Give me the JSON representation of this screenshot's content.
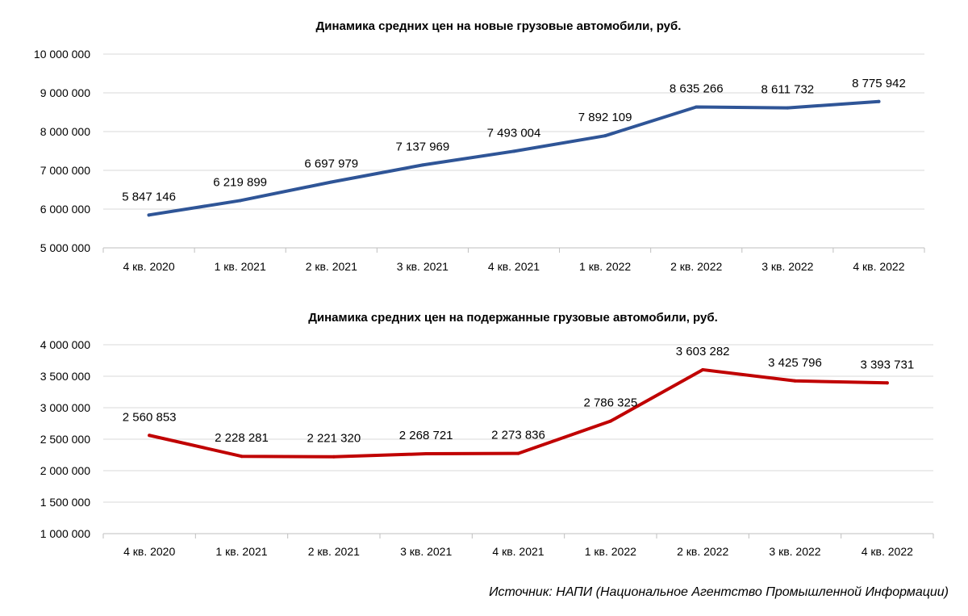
{
  "chart_data": [
    {
      "type": "line",
      "title": "Динамика средних цен на новые грузовые автомобили, руб.",
      "categories": [
        "4 кв. 2020",
        "1 кв. 2021",
        "2 кв. 2021",
        "3 кв. 2021",
        "4 кв. 2021",
        "1 кв. 2022",
        "2 кв. 2022",
        "3 кв. 2022",
        "4 кв. 2022"
      ],
      "values": [
        5847146,
        6219899,
        6697979,
        7137969,
        7493004,
        7892109,
        8635266,
        8611732,
        8775942
      ],
      "data_labels": [
        "5 847 146",
        "6 219 899",
        "6 697 979",
        "7 137 969",
        "7 493 004",
        "7 892 109",
        "8 635 266",
        "8 611 732",
        "8 775 942"
      ],
      "ylim": [
        5000000,
        10000000
      ],
      "yticks": [
        5000000,
        6000000,
        7000000,
        8000000,
        9000000,
        10000000
      ],
      "ytick_labels": [
        "5 000 000",
        "6 000 000",
        "7 000 000",
        "8 000 000",
        "9 000 000",
        "10 000 000"
      ],
      "color": "#2f5597",
      "grid": true,
      "legend": "none"
    },
    {
      "type": "line",
      "title": "Динамика средних цен на подержанные грузовые автомобили, руб.",
      "categories": [
        "4 кв. 2020",
        "1 кв. 2021",
        "2 кв. 2021",
        "3 кв. 2021",
        "4 кв. 2021",
        "1 кв. 2022",
        "2 кв. 2022",
        "3 кв. 2022",
        "4 кв. 2022"
      ],
      "values": [
        2560853,
        2228281,
        2221320,
        2268721,
        2273836,
        2786325,
        3603282,
        3425796,
        3393731
      ],
      "data_labels": [
        "2 560 853",
        "2 228 281",
        "2 221 320",
        "2 268 721",
        "2 273 836",
        "2 786 325",
        "3 603 282",
        "3 425 796",
        "3 393 731"
      ],
      "ylim": [
        1000000,
        4000000
      ],
      "yticks": [
        1000000,
        1500000,
        2000000,
        2500000,
        3000000,
        3500000,
        4000000
      ],
      "ytick_labels": [
        "1 000 000",
        "1 500 000",
        "2 000 000",
        "2 500 000",
        "3 000 000",
        "3 500 000",
        "4 000 000"
      ],
      "color": "#c00000",
      "grid": true,
      "legend": "none"
    }
  ],
  "source": "Источник: НАПИ (Национальное Агентство Промышленной Информации)"
}
